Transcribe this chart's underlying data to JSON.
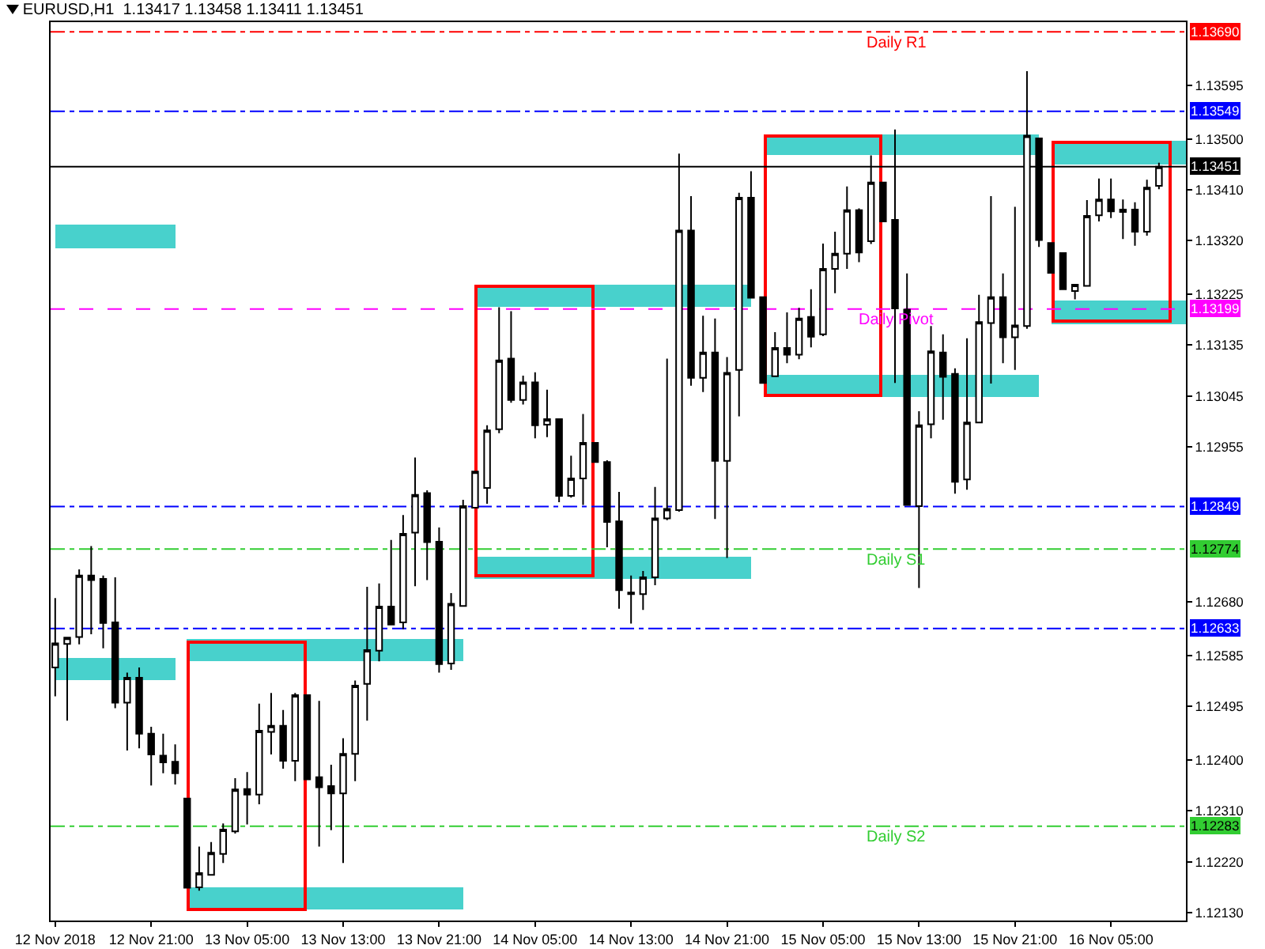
{
  "chart_data": {
    "type": "candlestick",
    "title": "EURUSD,H1  1.13417 1.13458 1.13411 1.13451",
    "x": [
      "2018-11-12T13:00",
      "2018-11-12T14:00",
      "2018-11-12T15:00",
      "2018-11-12T16:00",
      "2018-11-12T17:00",
      "2018-11-12T18:00",
      "2018-11-12T19:00",
      "2018-11-12T20:00",
      "2018-11-12T21:00",
      "2018-11-12T22:00",
      "2018-11-12T23:00",
      "2018-11-13T00:00",
      "2018-11-13T01:00",
      "2018-11-13T02:00",
      "2018-11-13T03:00",
      "2018-11-13T04:00",
      "2018-11-13T05:00",
      "2018-11-13T06:00",
      "2018-11-13T07:00",
      "2018-11-13T08:00",
      "2018-11-13T09:00",
      "2018-11-13T10:00",
      "2018-11-13T11:00",
      "2018-11-13T12:00",
      "2018-11-13T13:00",
      "2018-11-13T14:00",
      "2018-11-13T15:00",
      "2018-11-13T16:00",
      "2018-11-13T17:00",
      "2018-11-13T18:00",
      "2018-11-13T19:00",
      "2018-11-13T20:00",
      "2018-11-13T21:00",
      "2018-11-13T22:00",
      "2018-11-13T23:00",
      "2018-11-14T00:00",
      "2018-11-14T01:00",
      "2018-11-14T02:00",
      "2018-11-14T03:00",
      "2018-11-14T04:00",
      "2018-11-14T05:00",
      "2018-11-14T06:00",
      "2018-11-14T07:00",
      "2018-11-14T08:00",
      "2018-11-14T09:00",
      "2018-11-14T10:00",
      "2018-11-14T11:00",
      "2018-11-14T12:00",
      "2018-11-14T13:00",
      "2018-11-14T14:00",
      "2018-11-14T15:00",
      "2018-11-14T16:00",
      "2018-11-14T17:00",
      "2018-11-14T18:00",
      "2018-11-14T19:00",
      "2018-11-14T20:00",
      "2018-11-14T21:00",
      "2018-11-14T22:00",
      "2018-11-14T23:00",
      "2018-11-15T00:00",
      "2018-11-15T01:00",
      "2018-11-15T02:00",
      "2018-11-15T03:00",
      "2018-11-15T04:00",
      "2018-11-15T05:00",
      "2018-11-15T06:00",
      "2018-11-15T07:00",
      "2018-11-15T08:00",
      "2018-11-15T09:00",
      "2018-11-15T10:00",
      "2018-11-15T11:00",
      "2018-11-15T12:00",
      "2018-11-15T13:00",
      "2018-11-15T14:00",
      "2018-11-15T15:00",
      "2018-11-15T16:00",
      "2018-11-15T17:00",
      "2018-11-15T18:00",
      "2018-11-15T19:00",
      "2018-11-15T20:00",
      "2018-11-15T21:00",
      "2018-11-15T22:00",
      "2018-11-15T23:00",
      "2018-11-16T00:00",
      "2018-11-16T01:00",
      "2018-11-16T02:00",
      "2018-11-16T03:00",
      "2018-11-16T04:00",
      "2018-11-16T05:00",
      "2018-11-16T06:00",
      "2018-11-16T07:00",
      "2018-11-16T08:00",
      "2018-11-16T09:00"
    ],
    "ohlc": [
      [
        1.12564,
        1.12687,
        1.12513,
        1.12607
      ],
      [
        1.12606,
        1.12618,
        1.1247,
        1.12617
      ],
      [
        1.12618,
        1.12738,
        1.12605,
        1.12727
      ],
      [
        1.12727,
        1.12779,
        1.12623,
        1.12719
      ],
      [
        1.12721,
        1.12727,
        1.12598,
        1.12643
      ],
      [
        1.12644,
        1.12724,
        1.12492,
        1.12502
      ],
      [
        1.12502,
        1.12555,
        1.12417,
        1.12546
      ],
      [
        1.12546,
        1.12564,
        1.12421,
        1.12447
      ],
      [
        1.12447,
        1.12459,
        1.12355,
        1.1241
      ],
      [
        1.12408,
        1.12447,
        1.12377,
        1.12396
      ],
      [
        1.12397,
        1.12428,
        1.12357,
        1.12377
      ],
      [
        1.12332,
        1.12332,
        1.12174,
        1.12174
      ],
      [
        1.12175,
        1.12247,
        1.12169,
        1.122
      ],
      [
        1.12197,
        1.12255,
        1.12197,
        1.12236
      ],
      [
        1.12234,
        1.12288,
        1.12218,
        1.12277
      ],
      [
        1.12274,
        1.12368,
        1.1227,
        1.12348
      ],
      [
        1.12349,
        1.12379,
        1.12286,
        1.12339
      ],
      [
        1.12339,
        1.125,
        1.12322,
        1.12452
      ],
      [
        1.1245,
        1.12519,
        1.1241,
        1.12461
      ],
      [
        1.12461,
        1.12489,
        1.12385,
        1.12399
      ],
      [
        1.12399,
        1.12519,
        1.12363,
        1.12515
      ],
      [
        1.12515,
        1.12515,
        1.12366,
        1.12366
      ],
      [
        1.1237,
        1.12505,
        1.12247,
        1.12352
      ],
      [
        1.12354,
        1.12392,
        1.12276,
        1.12341
      ],
      [
        1.12341,
        1.12439,
        1.12218,
        1.12411
      ],
      [
        1.12411,
        1.12541,
        1.12363,
        1.12532
      ],
      [
        1.12535,
        1.12707,
        1.1247,
        1.12595
      ],
      [
        1.12594,
        1.12713,
        1.12575,
        1.12672
      ],
      [
        1.12672,
        1.1279,
        1.1264,
        1.1264
      ],
      [
        1.12644,
        1.12834,
        1.12632,
        1.12801
      ],
      [
        1.12803,
        1.12936,
        1.12708,
        1.1287
      ],
      [
        1.12873,
        1.12878,
        1.12719,
        1.12786
      ],
      [
        1.12787,
        1.12812,
        1.12555,
        1.1257
      ],
      [
        1.12571,
        1.12696,
        1.1256,
        1.12677
      ],
      [
        1.12673,
        1.12861,
        1.12672,
        1.1285
      ],
      [
        1.12847,
        1.12911,
        1.12847,
        1.12911
      ],
      [
        1.12882,
        1.12993,
        1.12854,
        1.12984
      ],
      [
        1.12986,
        1.13202,
        1.12979,
        1.13108
      ],
      [
        1.13111,
        1.13195,
        1.13033,
        1.13038
      ],
      [
        1.13038,
        1.13081,
        1.1303,
        1.13069
      ],
      [
        1.13069,
        1.13087,
        1.1297,
        1.12993
      ],
      [
        1.12994,
        1.13056,
        1.12972,
        1.13004
      ],
      [
        1.13004,
        1.13004,
        1.12857,
        1.12868
      ],
      [
        1.12868,
        1.12939,
        1.12865,
        1.12899
      ],
      [
        1.12899,
        1.13013,
        1.12852,
        1.12962
      ],
      [
        1.12962,
        1.12962,
        1.12928,
        1.12928
      ],
      [
        1.12928,
        1.12931,
        1.12777,
        1.12822
      ],
      [
        1.12823,
        1.12875,
        1.12668,
        1.12701
      ],
      [
        1.12697,
        1.12727,
        1.12642,
        1.12694
      ],
      [
        1.12694,
        1.12735,
        1.12666,
        1.12724
      ],
      [
        1.12724,
        1.12884,
        1.1271,
        1.12828
      ],
      [
        1.12828,
        1.13111,
        1.12825,
        1.12845
      ],
      [
        1.12843,
        1.13474,
        1.1284,
        1.13338
      ],
      [
        1.13338,
        1.13399,
        1.13063,
        1.13077
      ],
      [
        1.13077,
        1.13187,
        1.13052,
        1.13122
      ],
      [
        1.13122,
        1.13182,
        1.12827,
        1.1293
      ],
      [
        1.1293,
        1.13114,
        1.12758,
        1.13086
      ],
      [
        1.13091,
        1.13405,
        1.13009,
        1.13396
      ],
      [
        1.13396,
        1.13443,
        1.13219,
        1.13219
      ],
      [
        1.1322,
        1.1322,
        1.13068,
        1.13068
      ],
      [
        1.1308,
        1.13158,
        1.1308,
        1.1313
      ],
      [
        1.1313,
        1.13193,
        1.13103,
        1.13118
      ],
      [
        1.13118,
        1.13201,
        1.1311,
        1.13182
      ],
      [
        1.13185,
        1.13234,
        1.13131,
        1.1315
      ],
      [
        1.13154,
        1.13315,
        1.13151,
        1.1327
      ],
      [
        1.1327,
        1.13336,
        1.13227,
        1.13297
      ],
      [
        1.13297,
        1.13416,
        1.1327,
        1.13374
      ],
      [
        1.13374,
        1.13377,
        1.13282,
        1.13299
      ],
      [
        1.13319,
        1.13471,
        1.13314,
        1.13423
      ],
      [
        1.13423,
        1.13423,
        1.13354,
        1.13354
      ],
      [
        1.13357,
        1.13517,
        1.13068,
        1.132
      ],
      [
        1.13198,
        1.13262,
        1.12852,
        1.12852
      ],
      [
        1.1285,
        1.13018,
        1.12705,
        1.12993
      ],
      [
        1.12995,
        1.13169,
        1.1297,
        1.13124
      ],
      [
        1.13122,
        1.13154,
        1.13003,
        1.13079
      ],
      [
        1.13084,
        1.13094,
        1.12872,
        1.12893
      ],
      [
        1.12897,
        1.13147,
        1.12879,
        1.12998
      ],
      [
        1.12998,
        1.13224,
        1.12998,
        1.13176
      ],
      [
        1.13174,
        1.13399,
        1.13067,
        1.1322
      ],
      [
        1.1322,
        1.13262,
        1.13103,
        1.13149
      ],
      [
        1.13149,
        1.1338,
        1.13091,
        1.1317
      ],
      [
        1.13169,
        1.1362,
        1.13164,
        1.13506
      ],
      [
        1.13501,
        1.13501,
        1.13309,
        1.13321
      ],
      [
        1.13316,
        1.13316,
        1.13263,
        1.13263
      ],
      [
        1.13298,
        1.13298,
        1.13234,
        1.13234
      ],
      [
        1.13231,
        1.13242,
        1.13216,
        1.13242
      ],
      [
        1.1324,
        1.13392,
        1.1324,
        1.13364
      ],
      [
        1.13365,
        1.1343,
        1.13354,
        1.13393
      ],
      [
        1.13393,
        1.1343,
        1.1336,
        1.13372
      ],
      [
        1.13375,
        1.13393,
        1.13323,
        1.13371
      ],
      [
        1.13375,
        1.13388,
        1.13311,
        1.13336
      ],
      [
        1.13336,
        1.13428,
        1.13329,
        1.13414
      ],
      [
        1.13417,
        1.13458,
        1.13411,
        1.13451
      ]
    ],
    "xlim": [
      "2018-11-12T12:37",
      "2018-11-16T11:15"
    ],
    "xticks": [
      {
        "value": "2018-11-12T13:00",
        "label": "12 Nov 2018"
      },
      {
        "value": "2018-11-12T21:00",
        "label": "12 Nov 21:00"
      },
      {
        "value": "2018-11-13T05:00",
        "label": "13 Nov 05:00"
      },
      {
        "value": "2018-11-13T13:00",
        "label": "13 Nov 13:00"
      },
      {
        "value": "2018-11-13T21:00",
        "label": "13 Nov 21:00"
      },
      {
        "value": "2018-11-14T05:00",
        "label": "14 Nov 05:00"
      },
      {
        "value": "2018-11-14T13:00",
        "label": "14 Nov 13:00"
      },
      {
        "value": "2018-11-14T21:00",
        "label": "14 Nov 21:00"
      },
      {
        "value": "2018-11-15T05:00",
        "label": "15 Nov 05:00"
      },
      {
        "value": "2018-11-15T13:00",
        "label": "15 Nov 13:00"
      },
      {
        "value": "2018-11-15T21:00",
        "label": "15 Nov 21:00"
      },
      {
        "value": "2018-11-16T05:00",
        "label": "16 Nov 05:00"
      }
    ],
    "ylim": [
      1.12116,
      1.13707
    ],
    "yticks": [
      {
        "value": 1.1213,
        "label": "1.12130"
      },
      {
        "value": 1.1222,
        "label": "1.12220"
      },
      {
        "value": 1.1231,
        "label": "1.12310"
      },
      {
        "value": 1.124,
        "label": "1.12400"
      },
      1.12495,
      1.12585,
      {
        "value": 1.1268,
        "label": "1.12680"
      },
      1.12955,
      1.13045,
      1.13135,
      1.13225,
      {
        "value": 1.1332,
        "label": "1.13320"
      },
      {
        "value": 1.1341,
        "label": "1.13410"
      },
      {
        "value": 1.135,
        "label": "1.13500"
      },
      1.13595
    ],
    "ref_lines": [
      {
        "axis": "y",
        "value": 1.1369,
        "label": "Daily R1",
        "color": "#ff0000",
        "line_style": "dashdot"
      },
      {
        "axis": "y",
        "value": 1.13549,
        "color": "#0000ff",
        "line_style": "dashdot"
      },
      {
        "axis": "y",
        "value": 1.13451,
        "color": "#000000",
        "line_style": "solid"
      },
      {
        "axis": "y",
        "value": 1.13199,
        "label": "Daily Pivot",
        "color": "#ff00ff",
        "line_style": "dashed"
      },
      {
        "axis": "y",
        "value": 1.12849,
        "color": "#0000ff",
        "line_style": "dashdot"
      },
      {
        "axis": "y",
        "value": 1.12774,
        "label": "Daily S1",
        "color": "#32cd32",
        "line_style": "dashdot"
      },
      {
        "axis": "y",
        "value": 1.12633,
        "color": "#0000ff",
        "line_style": "dashdot"
      },
      {
        "axis": "y",
        "value": 1.12283,
        "label": "Daily S2",
        "color": "#32cd32",
        "line_style": "dashdot"
      }
    ],
    "annotations": [
      {
        "text": "1.13690",
        "y": 1.1369
      },
      {
        "text": "1.13549",
        "y": 1.13549
      },
      {
        "text": "1.13451",
        "y": 1.13451
      },
      {
        "text": "1.13199",
        "y": 1.13199
      },
      {
        "text": "1.12849",
        "y": 1.12849
      },
      {
        "text": "1.12774",
        "y": 1.12774
      },
      {
        "text": "1.12633",
        "y": 1.12633
      },
      {
        "text": "1.12283",
        "y": 1.12283
      }
    ],
    "grid": false
  }
}
